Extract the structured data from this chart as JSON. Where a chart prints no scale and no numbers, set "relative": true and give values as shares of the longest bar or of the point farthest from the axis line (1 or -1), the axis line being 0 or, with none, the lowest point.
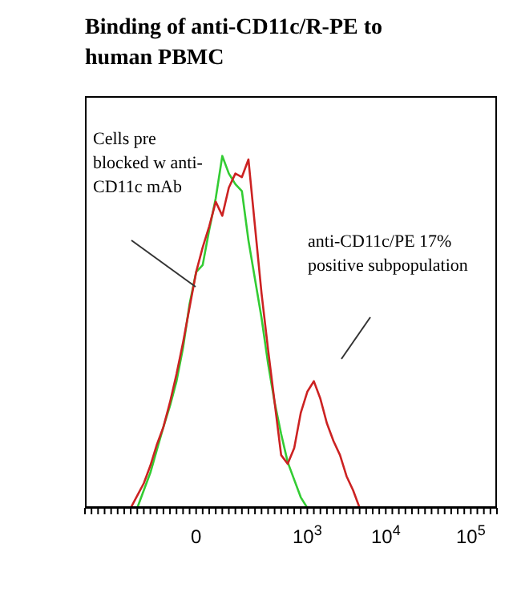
{
  "chart_data": {
    "type": "line",
    "title": "Binding of anti-CD11c/R-PE to human PBMC",
    "relative": true,
    "categories": [
      null,
      null,
      null,
      null,
      null,
      null,
      null,
      null,
      null,
      null,
      null,
      null,
      null,
      null,
      null,
      null,
      null,
      "0",
      null,
      null,
      null,
      null,
      null,
      null,
      null,
      null,
      null,
      null,
      null,
      null,
      null,
      null,
      null,
      null,
      "10$^{3}$",
      null,
      null,
      null,
      null,
      null,
      null,
      null,
      null,
      null,
      null,
      null,
      "10$^{4}$",
      null,
      null,
      null,
      null,
      null,
      null,
      null,
      null,
      null,
      null,
      null,
      null,
      "10$^{5}$",
      null,
      null,
      null,
      null
    ],
    "series": [
      {
        "color": "#33cc33",
        "values": [
          null,
          null,
          null,
          null,
          null,
          null,
          null,
          null,
          0,
          0.05,
          0.1,
          0.165,
          0.23,
          0.29,
          0.36,
          0.455,
          0.58,
          0.67,
          0.69,
          0.79,
          0.88,
          1,
          0.95,
          0.92,
          0.9,
          0.76,
          0.65,
          0.54,
          0.41,
          0.3,
          0.21,
          0.13,
          0.08,
          0.03,
          0,
          null,
          null,
          null,
          null,
          null,
          null,
          null,
          null,
          null,
          null,
          null,
          null,
          null,
          null,
          null,
          null,
          null,
          null,
          null,
          null,
          null,
          null,
          null,
          null,
          null,
          null,
          null,
          null,
          null
        ]
      },
      {
        "color": "#cc2222",
        "values": [
          null,
          null,
          null,
          null,
          null,
          null,
          null,
          0,
          0.035,
          0.07,
          0.12,
          0.18,
          0.23,
          0.3,
          0.38,
          0.47,
          0.57,
          0.67,
          0.74,
          0.8,
          0.87,
          0.83,
          0.91,
          0.95,
          0.94,
          0.99,
          0.8,
          0.61,
          0.45,
          0.3,
          0.15,
          0.125,
          0.17,
          0.27,
          0.33,
          0.36,
          0.31,
          0.24,
          0.19,
          0.15,
          0.09,
          0.05,
          0,
          null,
          null,
          null,
          null,
          null,
          null,
          null,
          null,
          null,
          null,
          null,
          null,
          null,
          null,
          null,
          null,
          null,
          null,
          null,
          null,
          null
        ]
      }
    ],
    "annotations": [
      "Cells pre blocked w anti-CD11c mAb",
      "anti-CD11c/PE 17% positive subpopulation"
    ]
  }
}
